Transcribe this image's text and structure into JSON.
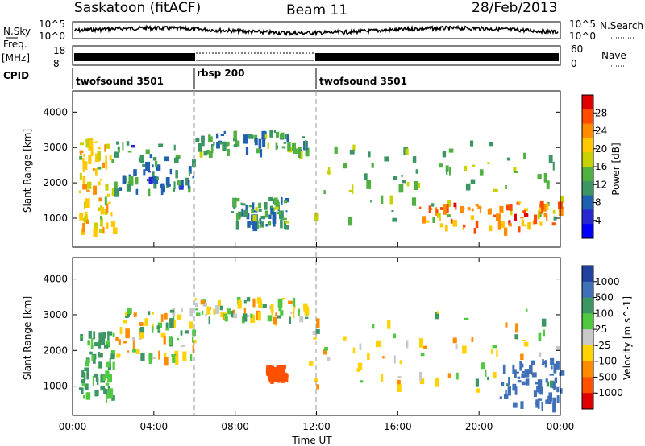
{
  "header": {
    "station": "Saskatoon (fitACF)",
    "beam": "Beam 11",
    "date": "28/Feb/2013"
  },
  "strip": {
    "nsky_label": "N.Sky",
    "nsearch_label": "N.Search",
    "noise_ticks_left": [
      "10^5",
      "10^0"
    ],
    "noise_ticks_right": [
      "10^5",
      "10^0"
    ],
    "freq_label": "Freq.",
    "freq_unit": "[MHz]",
    "freq_ticks": [
      "18",
      "8"
    ],
    "nave_label": "Nave",
    "nave_ticks": [
      "60",
      "0"
    ],
    "cpid_label": "CPID",
    "cpid_segments": [
      {
        "start_hour": 0,
        "end_hour": 6,
        "label": "twofsound 3501"
      },
      {
        "start_hour": 6,
        "end_hour": 12,
        "label": "rbsp 200"
      },
      {
        "start_hour": 12,
        "end_hour": 24,
        "label": "twofsound 3501"
      }
    ]
  },
  "power_panel": {
    "ylabel": "Slant Range [km]",
    "colorbar_label": "Power [dB]",
    "colorbar_ticks": [
      "28",
      "24",
      "20",
      "16",
      "12",
      "8",
      "4"
    ],
    "colorbar_colors": [
      "#e00000",
      "#ff4a00",
      "#ff8c00",
      "#ffc800",
      "#c8d200",
      "#50b040",
      "#3c9664",
      "#2060b0",
      "#2828d0",
      "#0000ff"
    ]
  },
  "velocity_panel": {
    "ylabel": "Slant Range [km]",
    "colorbar_label": "Velocity [m s^-1]",
    "colorbar_ticks": [
      "1000",
      "500",
      "100",
      "25",
      "-25",
      "-100",
      "-500",
      "-1000"
    ],
    "colorbar_colors": [
      "#2040a0",
      "#4070b8",
      "#3c9664",
      "#50c840",
      "#c8c8c8",
      "#ffd200",
      "#ff8c00",
      "#ff5000",
      "#e00000"
    ]
  },
  "x_axis": {
    "label": "Time UT",
    "ticks": [
      "00:00",
      "04:00",
      "08:00",
      "12:00",
      "16:00",
      "20:00",
      "00:00"
    ]
  },
  "chart_data": [
    {
      "type": "heatmap",
      "title": "Power",
      "xlabel": "Time UT",
      "ylabel": "Slant Range [km]",
      "xlim_hours": [
        0,
        24
      ],
      "ylim_km": [
        180,
        4600
      ],
      "yticks_km": [
        1000,
        2000,
        3000,
        4000
      ],
      "colorbar": {
        "label": "Power [dB]",
        "range": [
          0,
          32
        ],
        "ticks": [
          4,
          8,
          12,
          16,
          20,
          24,
          28
        ]
      },
      "echo_regions": [
        {
          "hours": [
            0.3,
            2.0
          ],
          "range_km": [
            700,
            3300
          ],
          "power_db": 20
        },
        {
          "hours": [
            2.0,
            6.0
          ],
          "range_km": [
            1800,
            3200
          ],
          "power_db": 10
        },
        {
          "hours": [
            6.0,
            11.5
          ],
          "range_km": [
            2900,
            3500
          ],
          "power_db": 12
        },
        {
          "hours": [
            7.8,
            10.5
          ],
          "range_km": [
            800,
            1600
          ],
          "power_db": 12
        },
        {
          "hours": [
            11.5,
            24.0
          ],
          "range_km": [
            900,
            3200
          ],
          "power_db": 14
        },
        {
          "hours": [
            17.0,
            24.0
          ],
          "range_km": [
            700,
            1500
          ],
          "power_db": 26
        }
      ]
    },
    {
      "type": "heatmap",
      "title": "Velocity",
      "xlabel": "Time UT",
      "ylabel": "Slant Range [km]",
      "xlim_hours": [
        0,
        24
      ],
      "ylim_km": [
        180,
        4600
      ],
      "yticks_km": [
        1000,
        2000,
        3000,
        4000
      ],
      "colorbar": {
        "label": "Velocity [m s^-1]",
        "ticks": [
          1000,
          500,
          100,
          25,
          -25,
          -100,
          -500,
          -1000
        ]
      },
      "echo_regions": [
        {
          "hours": [
            0.3,
            2.0
          ],
          "range_km": [
            700,
            2600
          ],
          "velocity_ms": 100
        },
        {
          "hours": [
            2.0,
            6.0
          ],
          "range_km": [
            1800,
            3200
          ],
          "velocity_ms": 0
        },
        {
          "hours": [
            6.0,
            11.5
          ],
          "range_km": [
            2900,
            3500
          ],
          "velocity_ms": 0
        },
        {
          "hours": [
            9.5,
            10.5
          ],
          "range_km": [
            1300,
            1600
          ],
          "velocity_ms": -500
        },
        {
          "hours": [
            11.5,
            24.0
          ],
          "range_km": [
            900,
            3200
          ],
          "velocity_ms": 0
        },
        {
          "hours": [
            21.0,
            24.0
          ],
          "range_km": [
            500,
            1800
          ],
          "velocity_ms": 500
        }
      ]
    }
  ]
}
